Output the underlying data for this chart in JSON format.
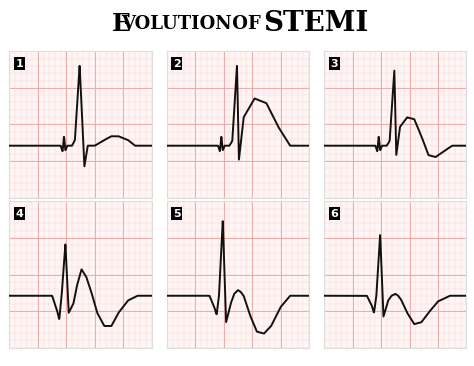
{
  "title_part1": "Evolution",
  "title_of": "of",
  "title_part2": "STEMI",
  "background_color": "#ffffff",
  "grid_major_color": "#f0aaaa",
  "grid_minor_color": "#fad0d0",
  "panel_bg": "#fef5f5",
  "ecg_color": "#111111",
  "panel_border": "#dddddd",
  "ecg_traces": {
    "1": {
      "x": [
        0.0,
        0.8,
        1.0,
        1.08,
        1.12,
        1.15,
        1.18,
        1.22,
        1.32,
        1.38,
        1.48,
        1.58,
        1.65,
        1.8,
        2.0,
        2.15,
        2.3,
        2.5,
        2.65,
        3.0
      ],
      "y": [
        0.0,
        0.0,
        0.0,
        0.0,
        -0.06,
        0.1,
        -0.05,
        0.0,
        0.0,
        0.06,
        0.85,
        -0.22,
        0.0,
        0.0,
        0.06,
        0.1,
        0.1,
        0.06,
        0.0,
        0.0
      ]
    },
    "2": {
      "x": [
        0.0,
        0.8,
        1.0,
        1.08,
        1.12,
        1.15,
        1.18,
        1.22,
        1.32,
        1.38,
        1.48,
        1.52,
        1.62,
        1.85,
        2.1,
        2.35,
        2.6,
        2.8,
        3.0
      ],
      "y": [
        0.0,
        0.0,
        0.0,
        0.0,
        -0.06,
        0.1,
        -0.05,
        0.0,
        0.0,
        0.05,
        0.85,
        -0.15,
        0.3,
        0.5,
        0.45,
        0.2,
        0.0,
        0.0,
        0.0
      ]
    },
    "3": {
      "x": [
        0.0,
        0.8,
        1.0,
        1.08,
        1.12,
        1.15,
        1.18,
        1.22,
        1.32,
        1.38,
        1.48,
        1.52,
        1.6,
        1.75,
        1.9,
        2.05,
        2.2,
        2.35,
        2.55,
        2.7,
        3.0
      ],
      "y": [
        0.0,
        0.0,
        0.0,
        0.0,
        -0.06,
        0.1,
        -0.05,
        0.0,
        0.0,
        0.05,
        0.8,
        -0.1,
        0.2,
        0.3,
        0.28,
        0.1,
        -0.1,
        -0.12,
        -0.05,
        0.0,
        0.0
      ]
    },
    "4": {
      "x": [
        0.0,
        0.7,
        0.9,
        1.0,
        1.05,
        1.1,
        1.18,
        1.25,
        1.35,
        1.42,
        1.52,
        1.62,
        1.72,
        1.85,
        2.0,
        2.15,
        2.3,
        2.5,
        2.7,
        3.0
      ],
      "y": [
        0.0,
        0.0,
        0.0,
        -0.15,
        -0.25,
        0.0,
        0.55,
        -0.18,
        -0.08,
        0.1,
        0.28,
        0.2,
        0.05,
        -0.18,
        -0.32,
        -0.32,
        -0.18,
        -0.05,
        0.0,
        0.0
      ]
    },
    "5": {
      "x": [
        0.0,
        0.7,
        0.9,
        1.0,
        1.05,
        1.1,
        1.18,
        1.25,
        1.35,
        1.42,
        1.5,
        1.56,
        1.62,
        1.75,
        1.9,
        2.05,
        2.2,
        2.4,
        2.6,
        2.8,
        3.0
      ],
      "y": [
        0.0,
        0.0,
        0.0,
        -0.12,
        -0.2,
        0.0,
        0.8,
        -0.28,
        -0.08,
        0.02,
        0.06,
        0.04,
        0.0,
        -0.2,
        -0.38,
        -0.4,
        -0.32,
        -0.12,
        0.0,
        0.0,
        0.0
      ]
    },
    "6": {
      "x": [
        0.0,
        0.7,
        0.9,
        1.0,
        1.05,
        1.1,
        1.18,
        1.25,
        1.35,
        1.42,
        1.5,
        1.56,
        1.62,
        1.75,
        1.9,
        2.05,
        2.2,
        2.4,
        2.65,
        2.85,
        3.0
      ],
      "y": [
        0.0,
        0.0,
        0.0,
        -0.1,
        -0.18,
        0.0,
        0.65,
        -0.22,
        -0.05,
        0.0,
        0.02,
        0.0,
        -0.04,
        -0.18,
        -0.3,
        -0.28,
        -0.18,
        -0.06,
        0.0,
        0.0,
        0.0
      ]
    }
  }
}
